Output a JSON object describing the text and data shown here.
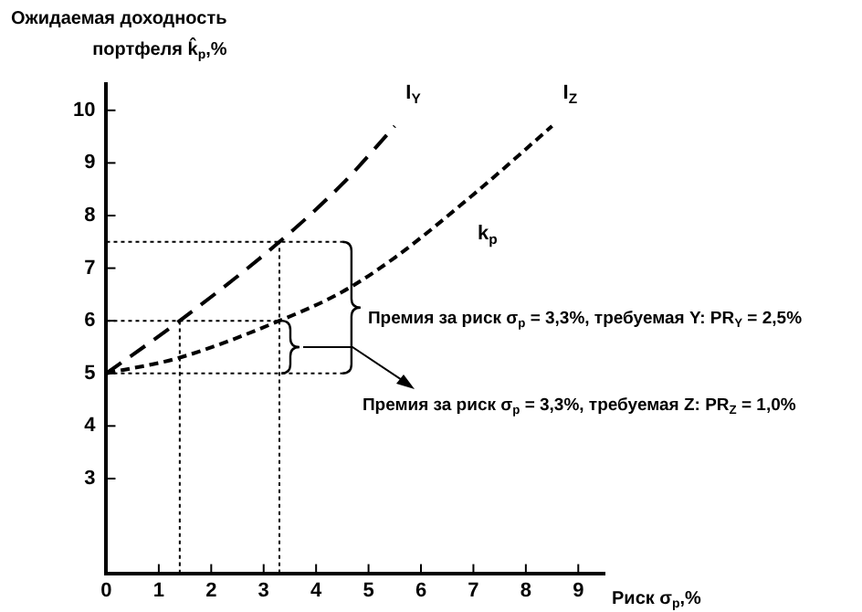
{
  "chart_data": {
    "type": "line",
    "ylabel": "Ожидаемая доходность портфеля k̂$_{p}$,%",
    "xlabel": "Риск σ$_{p}$,%",
    "xlim": [
      0,
      9.5
    ],
    "xticks": [
      0,
      1,
      2,
      3,
      4,
      5,
      6,
      7,
      8,
      9
    ],
    "ylim": [
      1.2,
      10.5
    ],
    "yticks": [
      3,
      4,
      5,
      6,
      7,
      8,
      9,
      10
    ],
    "legend": false,
    "grid": false,
    "marker": "none",
    "series": [
      {
        "name": "I$_{Y}$",
        "color": "#000000",
        "line_style": "dashed",
        "x": [
          0,
          1.4,
          3.3,
          4.5,
          5.5
        ],
        "values": [
          5,
          6,
          7.5,
          8.6,
          9.7
        ]
      },
      {
        "name": "I$_{Z}$",
        "color": "#000000",
        "line_style": "dashed",
        "x": [
          0,
          1.4,
          3.3,
          4.5,
          5.5,
          7,
          8.5
        ],
        "values": [
          5,
          5.3,
          6,
          6.55,
          7.2,
          8.4,
          9.7
        ]
      },
      {
        "color": "#000000",
        "line_style": "dotted",
        "x": [
          0,
          4.5
        ],
        "values": [
          7.5,
          7.5
        ]
      },
      {
        "color": "#000000",
        "line_style": "dotted",
        "x": [
          0,
          3.3
        ],
        "values": [
          6,
          6
        ]
      },
      {
        "color": "#000000",
        "line_style": "dotted",
        "x": [
          0,
          4.5
        ],
        "values": [
          5,
          5
        ]
      },
      {
        "color": "#000000",
        "line_style": "dotted",
        "x": [
          1.4,
          1.4
        ],
        "values": [
          1.2,
          6
        ]
      },
      {
        "color": "#000000",
        "line_style": "dotted",
        "x": [
          3.3,
          3.3
        ],
        "values": [
          1.2,
          7.5
        ]
      }
    ],
    "annotations": [
      "k$_{p}$",
      "Премия за риск σ$_{p}$ = 3,3%, требуемая Y: PR$_{Y}$ = 2,5%",
      "Премия за риск σ$_{p}$ = 3,3%, требуемая Z: PR$_{Z}$ = 1,0%"
    ]
  }
}
